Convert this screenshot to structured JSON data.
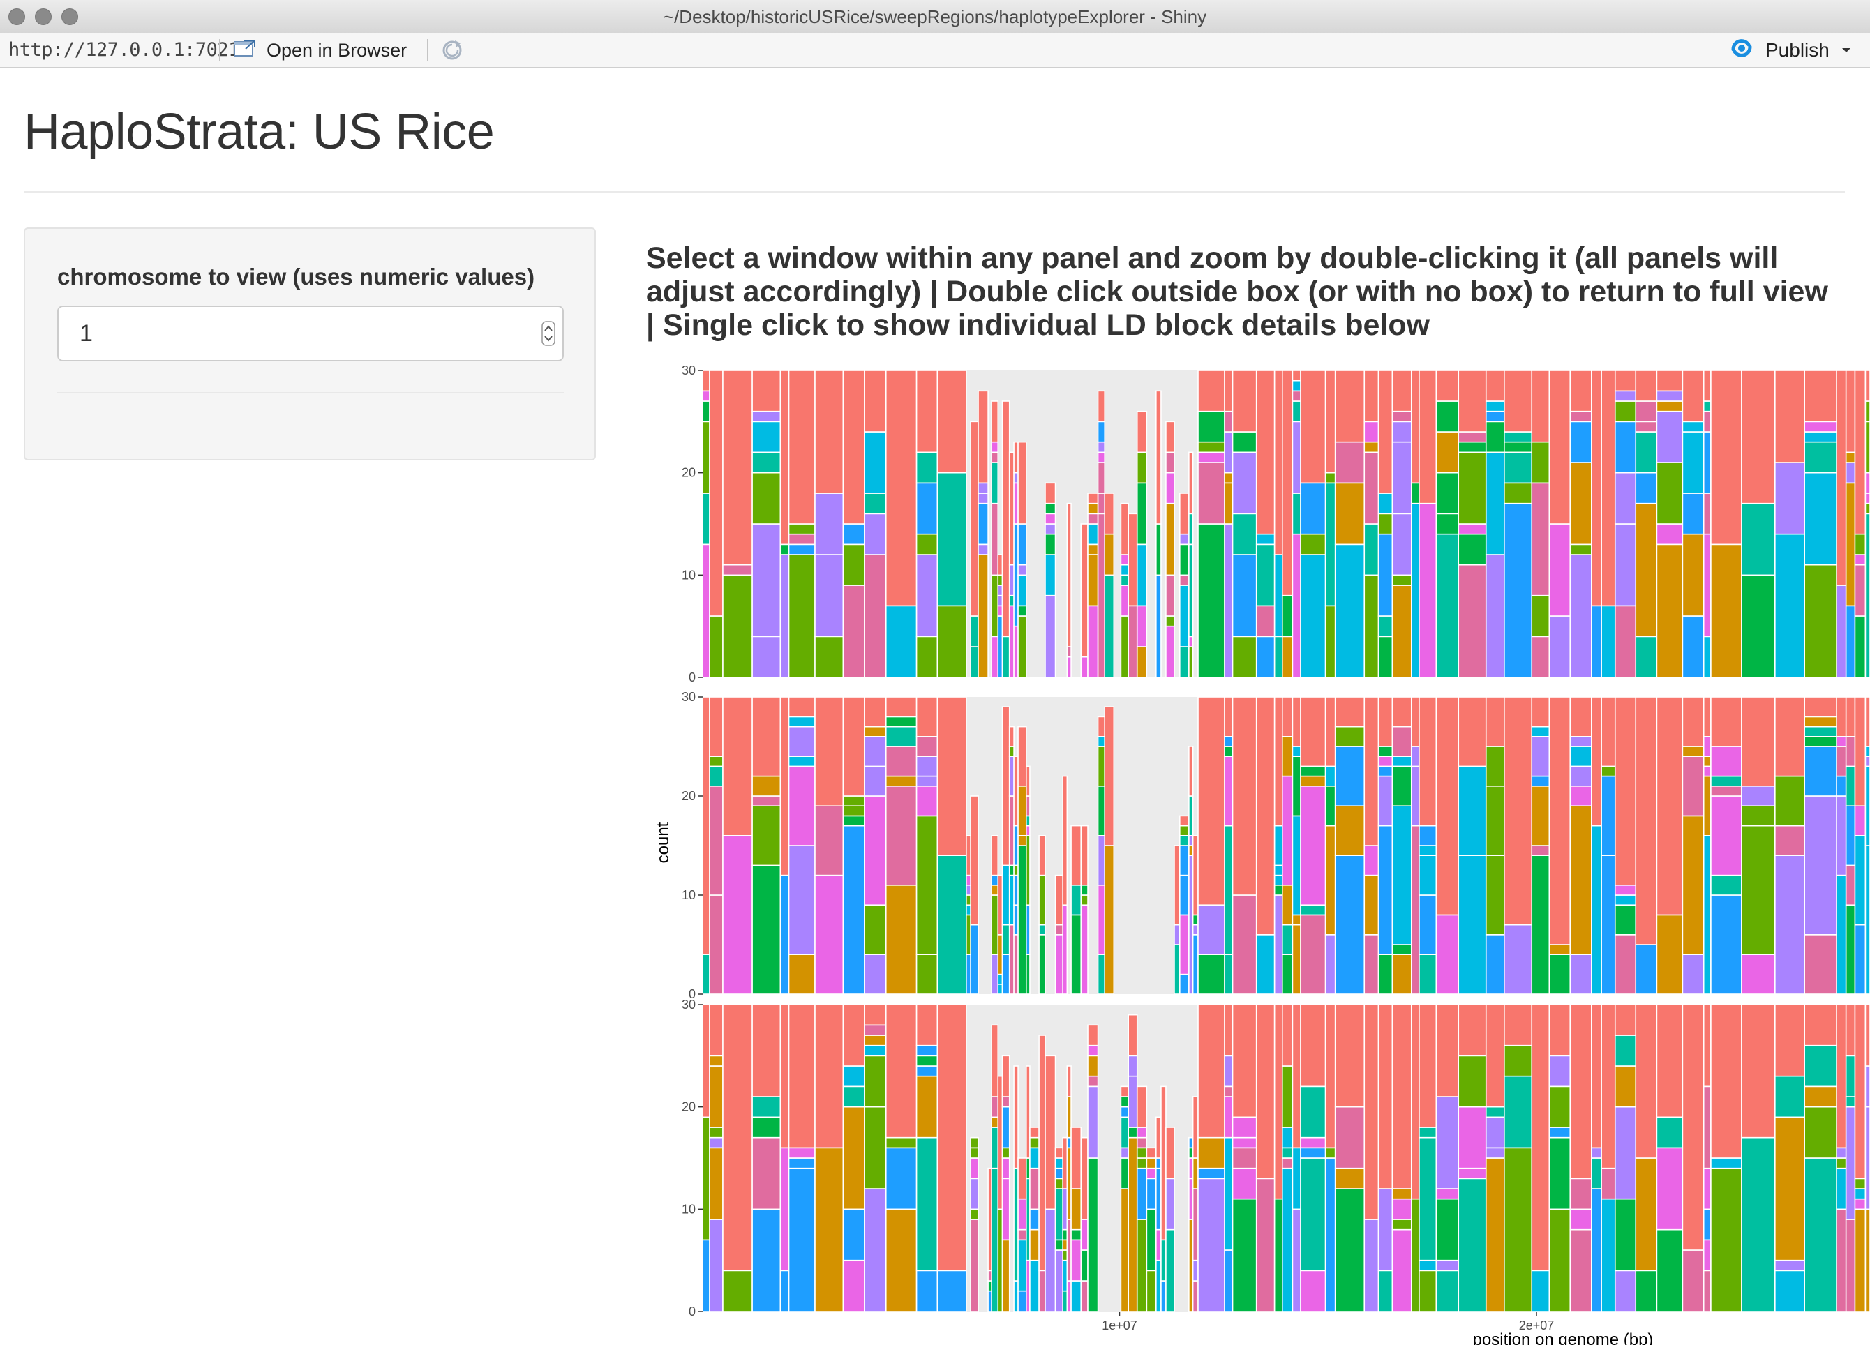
{
  "window": {
    "title": "~/Desktop/historicUSRice/sweepRegions/haplotypeExplorer - Shiny"
  },
  "toolbar": {
    "url": "http://127.0.0.1:7021",
    "open_in_browser_label": "Open in Browser",
    "publish_label": "Publish"
  },
  "app": {
    "title": "HaploStrata: US Rice"
  },
  "sidebar": {
    "chromosome_label": "chromosome to view (uses numeric values)",
    "chromosome_value": "1"
  },
  "main": {
    "instructions": "Select a window within any panel and zoom by double-clicking it (all panels will adjust accordingly) | Double click outside box (or with no box) to return to full view | Single click to show individual LD block details below"
  },
  "chart_data": {
    "type": "bar",
    "stacked": true,
    "facets": 3,
    "ylabel": "count",
    "xlabel": "position on genome (bp)",
    "ylim": [
      0,
      30
    ],
    "y_ticks": [
      "0",
      "10",
      "20",
      "30"
    ],
    "x_ticks": [
      {
        "value": 10000000,
        "label": "1e+07"
      },
      {
        "value": 20000000,
        "label": "2e+07"
      }
    ],
    "palette": [
      "#F8766D",
      "#64AD00",
      "#00B545",
      "#00BFA0",
      "#00BBE3",
      "#1E9EFF",
      "#A983FF",
      "#EA65E6",
      "#D39200",
      "#E06C9F"
    ],
    "grid": true
  }
}
